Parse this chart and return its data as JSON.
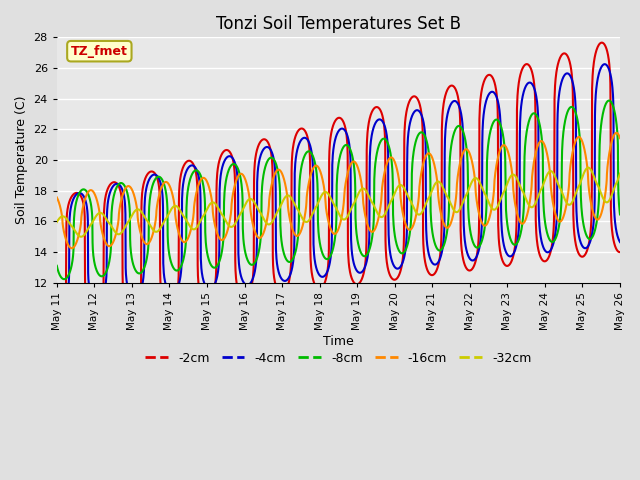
{
  "title": "Tonzi Soil Temperatures Set B",
  "xlabel": "Time",
  "ylabel": "Soil Temperature (C)",
  "ylim": [
    12,
    28
  ],
  "annotation_text": "TZ_fmet",
  "annotation_color": "#cc0000",
  "annotation_bg": "#ffffcc",
  "annotation_border": "#aaa820",
  "series_names": [
    "-2cm",
    "-4cm",
    "-8cm",
    "-16cm",
    "-32cm"
  ],
  "series_colors": [
    "#dd0000",
    "#0000cc",
    "#00bb00",
    "#ff8800",
    "#cccc00"
  ],
  "series_lw": [
    1.5,
    1.5,
    1.5,
    1.5,
    1.5
  ],
  "series_sharpness": [
    6.0,
    5.0,
    3.0,
    1.5,
    0.8
  ],
  "series_amplitude_start": [
    4.0,
    3.5,
    2.8,
    1.8,
    0.7
  ],
  "series_amplitude_end": [
    7.0,
    6.0,
    4.5,
    2.8,
    1.2
  ],
  "series_base_start": [
    13.5,
    14.0,
    15.0,
    16.0,
    15.6
  ],
  "series_base_end": [
    21.0,
    20.5,
    19.5,
    19.0,
    18.5
  ],
  "series_phase_days": [
    0.0,
    0.08,
    0.2,
    0.4,
    0.65
  ],
  "total_days": 15,
  "points_per_day": 144,
  "xtick_labels": [
    "May 11",
    "May 12",
    "May 13",
    "May 14",
    "May 15",
    "May 16",
    "May 17",
    "May 18",
    "May 19",
    "May 20",
    "May 21",
    "May 22",
    "May 23",
    "May 24",
    "May 25",
    "May 26"
  ],
  "xtick_positions": [
    0,
    1,
    2,
    3,
    4,
    5,
    6,
    7,
    8,
    9,
    10,
    11,
    12,
    13,
    14,
    15
  ],
  "ytick_labels": [
    "12",
    "14",
    "16",
    "18",
    "20",
    "22",
    "24",
    "26",
    "28"
  ],
  "ytick_positions": [
    12,
    14,
    16,
    18,
    20,
    22,
    24,
    26,
    28
  ],
  "legend_entries": [
    "-2cm",
    "-4cm",
    "-8cm",
    "-16cm",
    "-32cm"
  ],
  "legend_colors": [
    "#dd0000",
    "#0000cc",
    "#00bb00",
    "#ff8800",
    "#cccc00"
  ],
  "bg_color": "#e0e0e0",
  "plot_bg": "#e8e8e8",
  "grid_color": "#ffffff"
}
